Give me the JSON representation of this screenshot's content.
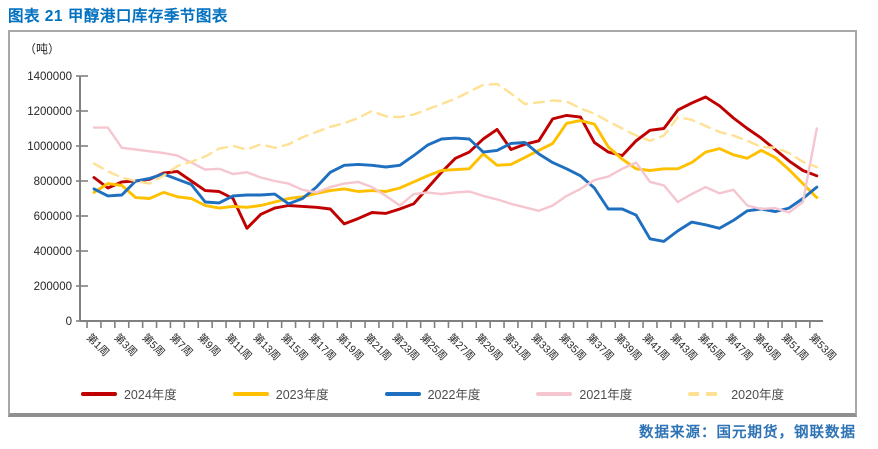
{
  "header": {
    "title": "图表 21  甲醇港口库存季节图表"
  },
  "footer": {
    "source": "数据来源：国元期货，钢联数据"
  },
  "chart_data": {
    "type": "line",
    "unit_label": "（吨）",
    "legend_position": "bottom",
    "grid": false,
    "x_axis": {
      "weeks": 53,
      "labels": [
        "第1周",
        "第3周",
        "第5周",
        "第7周",
        "第9周",
        "第11周",
        "第13周",
        "第15周",
        "第17周",
        "第19周",
        "第21周",
        "第23周",
        "第25周",
        "第27周",
        "第29周",
        "第31周",
        "第33周",
        "第35周",
        "第37周",
        "第39周",
        "第41周",
        "第43周",
        "第45周",
        "第47周",
        "第49周",
        "第51周",
        "第53周"
      ]
    },
    "y_axis": {
      "min": 0,
      "max": 1400000,
      "tick_interval": 200000,
      "ticks": [
        0,
        200000,
        400000,
        600000,
        800000,
        1000000,
        1200000,
        1400000
      ]
    },
    "series": [
      {
        "name": "2024年度",
        "color": "#C00000",
        "dashed": false,
        "values": [
          820000,
          760000,
          795000,
          800000,
          810000,
          845000,
          855000,
          800000,
          745000,
          740000,
          700000,
          530000,
          610000,
          645000,
          660000,
          655000,
          650000,
          640000,
          555000,
          585000,
          620000,
          615000,
          640000,
          670000,
          760000,
          850000,
          930000,
          965000,
          1040000,
          1095000,
          980000,
          1010000,
          1030000,
          1155000,
          1175000,
          1165000,
          1020000,
          965000,
          945000,
          1030000,
          1090000,
          1100000,
          1205000,
          1245000,
          1280000,
          1230000,
          1160000,
          1100000,
          1045000,
          980000,
          915000,
          860000,
          830000
        ]
      },
      {
        "name": "2023年度",
        "color": "#FFC000",
        "dashed": false,
        "values": [
          735000,
          785000,
          775000,
          705000,
          700000,
          735000,
          710000,
          700000,
          660000,
          645000,
          655000,
          650000,
          660000,
          680000,
          700000,
          710000,
          730000,
          745000,
          755000,
          740000,
          745000,
          740000,
          760000,
          795000,
          830000,
          860000,
          865000,
          870000,
          955000,
          890000,
          895000,
          935000,
          975000,
          1015000,
          1130000,
          1145000,
          1125000,
          995000,
          925000,
          870000,
          860000,
          870000,
          870000,
          905000,
          965000,
          985000,
          950000,
          930000,
          975000,
          935000,
          865000,
          785000,
          705000
        ]
      },
      {
        "name": "2022年度",
        "color": "#1F6FC0",
        "dashed": false,
        "values": [
          755000,
          715000,
          720000,
          800000,
          815000,
          840000,
          810000,
          780000,
          680000,
          675000,
          715000,
          720000,
          720000,
          725000,
          670000,
          700000,
          765000,
          850000,
          890000,
          895000,
          890000,
          880000,
          890000,
          945000,
          1005000,
          1040000,
          1045000,
          1040000,
          965000,
          975000,
          1015000,
          1020000,
          955000,
          905000,
          870000,
          830000,
          760000,
          640000,
          640000,
          605000,
          470000,
          455000,
          515000,
          565000,
          550000,
          530000,
          575000,
          630000,
          640000,
          625000,
          645000,
          700000,
          765000
        ]
      },
      {
        "name": "2021年度",
        "color": "#F5C6D0",
        "dashed": false,
        "values": [
          1105000,
          1105000,
          990000,
          980000,
          970000,
          960000,
          945000,
          905000,
          865000,
          870000,
          840000,
          850000,
          820000,
          800000,
          785000,
          750000,
          735000,
          765000,
          785000,
          795000,
          765000,
          715000,
          660000,
          725000,
          735000,
          725000,
          735000,
          740000,
          715000,
          695000,
          670000,
          650000,
          630000,
          660000,
          715000,
          755000,
          805000,
          825000,
          870000,
          905000,
          795000,
          775000,
          680000,
          725000,
          765000,
          730000,
          750000,
          660000,
          640000,
          645000,
          620000,
          680000,
          1100000
        ]
      },
      {
        "name": "2020年度",
        "color": "#FFE194",
        "dashed": true,
        "values": [
          900000,
          855000,
          820000,
          800000,
          785000,
          830000,
          885000,
          910000,
          940000,
          985000,
          1000000,
          980000,
          1010000,
          990000,
          1010000,
          1050000,
          1080000,
          1110000,
          1130000,
          1160000,
          1200000,
          1170000,
          1165000,
          1180000,
          1210000,
          1240000,
          1270000,
          1310000,
          1350000,
          1355000,
          1300000,
          1240000,
          1250000,
          1260000,
          1255000,
          1215000,
          1185000,
          1140000,
          1100000,
          1060000,
          1030000,
          1060000,
          1165000,
          1150000,
          1115000,
          1080000,
          1060000,
          1030000,
          995000,
          990000,
          960000,
          910000,
          880000
        ]
      }
    ],
    "colors": {
      "title_blue": "#0070C0",
      "source_blue": "#2E74B5",
      "axis_gray": "#808080",
      "box_border_gray": "#A8A8A8",
      "tick_label_color": "#262626",
      "legend_text": "#4D4D4D"
    }
  }
}
